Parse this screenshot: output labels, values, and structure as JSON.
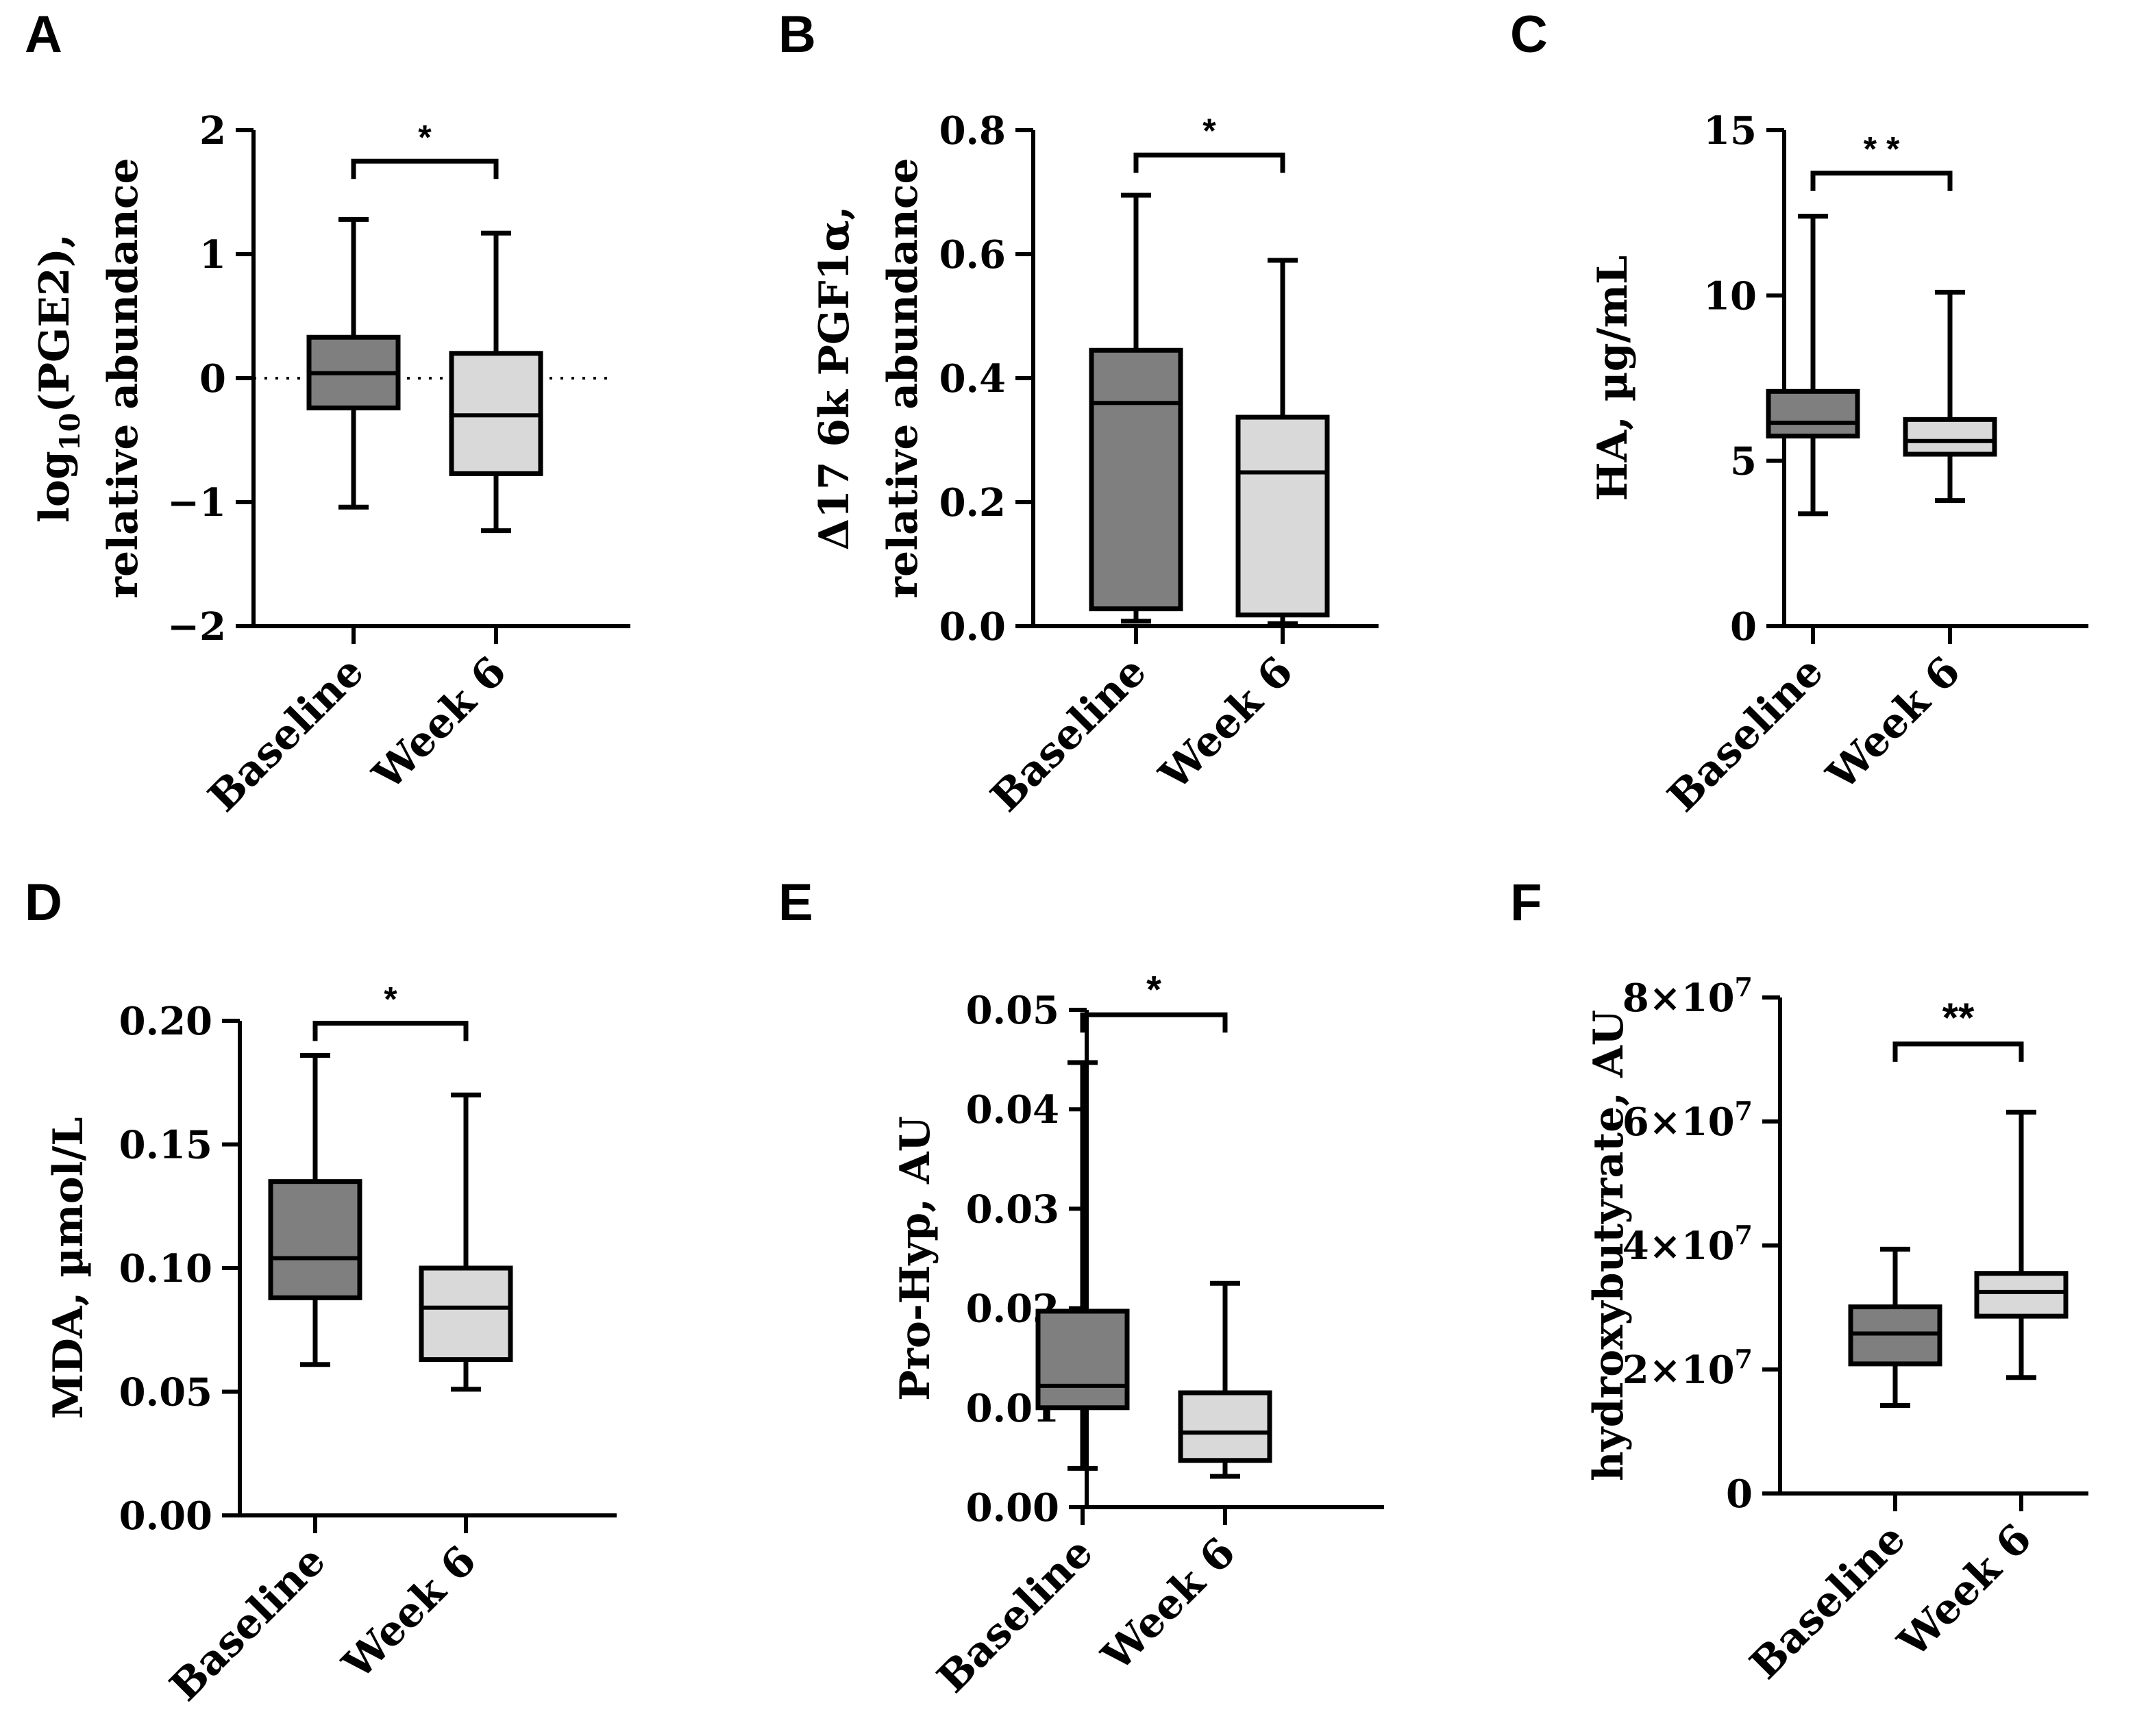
{
  "chart_data": [
    {
      "panel": "A",
      "type": "boxplot",
      "ylabel_lines": [
        "log₁₀(PGE2),",
        "relative abundance"
      ],
      "ylim": [
        -2,
        2
      ],
      "yticks": [
        -2,
        -1,
        0,
        1,
        2
      ],
      "ytick_labels": [
        "−2",
        "−1",
        "0",
        "1",
        "2"
      ],
      "reference_line": 0,
      "categories": [
        "Baseline",
        "Week 6"
      ],
      "boxes": [
        {
          "category": "Baseline",
          "min": -1.04,
          "q1": -0.24,
          "median": 0.04,
          "q3": 0.33,
          "max": 1.28
        },
        {
          "category": "Week 6",
          "min": -1.23,
          "q1": -0.77,
          "median": -0.3,
          "q3": 0.2,
          "max": 1.17
        }
      ],
      "significance": {
        "label": "*",
        "y": 1.75
      }
    },
    {
      "panel": "B",
      "type": "boxplot",
      "ylabel_lines": [
        "Δ17 6k PGF1α,",
        "relative abundance"
      ],
      "ylim": [
        0,
        0.8
      ],
      "yticks": [
        0,
        0.2,
        0.4,
        0.6,
        0.8
      ],
      "ytick_labels": [
        "0.0",
        "0.2",
        "0.4",
        "0.6",
        "0.8"
      ],
      "categories": [
        "Baseline",
        "Week 6"
      ],
      "boxes": [
        {
          "category": "Baseline",
          "min": 0.008,
          "q1": 0.028,
          "median": 0.36,
          "q3": 0.445,
          "max": 0.695
        },
        {
          "category": "Week 6",
          "min": 0.004,
          "q1": 0.018,
          "median": 0.248,
          "q3": 0.337,
          "max": 0.59
        }
      ],
      "significance": {
        "label": "*",
        "y": 0.76
      }
    },
    {
      "panel": "C",
      "type": "boxplot",
      "ylabel_lines": [
        "HA, µg/mL"
      ],
      "ylim": [
        0,
        15
      ],
      "yticks": [
        0,
        5,
        10,
        15
      ],
      "ytick_labels": [
        "0",
        "5",
        "10",
        "15"
      ],
      "categories": [
        "Baseline",
        "Week 6"
      ],
      "boxes": [
        {
          "category": "Baseline",
          "min": 3.4,
          "q1": 5.75,
          "median": 6.15,
          "q3": 7.1,
          "max": 12.4
        },
        {
          "category": "Week 6",
          "min": 3.8,
          "q1": 5.2,
          "median": 5.6,
          "q3": 6.25,
          "max": 10.1
        }
      ],
      "significance": {
        "label": "* *",
        "y": 13.7
      }
    },
    {
      "panel": "D",
      "type": "boxplot",
      "ylabel_lines": [
        "MDA, µmol/L"
      ],
      "ylim": [
        0,
        0.2
      ],
      "yticks": [
        0,
        0.05,
        0.1,
        0.15,
        0.2
      ],
      "ytick_labels": [
        "0.00",
        "0.05",
        "0.10",
        "0.15",
        "0.20"
      ],
      "categories": [
        "Baseline",
        "Week 6"
      ],
      "boxes": [
        {
          "category": "Baseline",
          "min": 0.061,
          "q1": 0.088,
          "median": 0.104,
          "q3": 0.135,
          "max": 0.186
        },
        {
          "category": "Week 6",
          "min": 0.051,
          "q1": 0.063,
          "median": 0.084,
          "q3": 0.1,
          "max": 0.17
        }
      ],
      "significance": {
        "label": "*",
        "y": 0.199
      }
    },
    {
      "panel": "E",
      "type": "boxplot",
      "ylabel_lines": [
        "Pro-Hyp, AU"
      ],
      "ylim": [
        0,
        0.05
      ],
      "yticks": [
        0,
        0.01,
        0.02,
        0.03,
        0.04,
        0.05
      ],
      "ytick_labels": [
        "0.00",
        "0.01",
        "0.02",
        "0.03",
        "0.04",
        "0.05"
      ],
      "categories": [
        "Baseline",
        "Week 6"
      ],
      "boxes": [
        {
          "category": "Baseline",
          "min": 0.0039,
          "q1": 0.01,
          "median": 0.0122,
          "q3": 0.0197,
          "max": 0.0447
        },
        {
          "category": "Week 6",
          "min": 0.0031,
          "q1": 0.0047,
          "median": 0.0075,
          "q3": 0.0115,
          "max": 0.0225
        }
      ],
      "significance": {
        "label": "*",
        "y": 0.0495
      }
    },
    {
      "panel": "F",
      "type": "boxplot",
      "ylabel_lines": [
        "hydroxybutyrate, AU"
      ],
      "ylim": [
        0,
        80000000
      ],
      "yticks": [
        0,
        20000000,
        40000000,
        60000000,
        80000000
      ],
      "ytick_labels": [
        "0",
        "2×10⁷",
        "4×10⁷",
        "6×10⁷",
        "8×10⁷"
      ],
      "categories": [
        "Baseline",
        "Week 6"
      ],
      "boxes": [
        {
          "category": "Baseline",
          "min": 14200000,
          "q1": 20900000,
          "median": 25800000,
          "q3": 30100000,
          "max": 39400000
        },
        {
          "category": "Week 6",
          "min": 18700000,
          "q1": 28600000,
          "median": 32500000,
          "q3": 35500000,
          "max": 61500000
        }
      ],
      "significance": {
        "label": "**",
        "y": 72500000
      }
    }
  ],
  "colors": {
    "baseline_fill": "#7f7f7f",
    "week6_fill": "#d9d9d9",
    "stroke": "#000000",
    "background": "#ffffff"
  }
}
